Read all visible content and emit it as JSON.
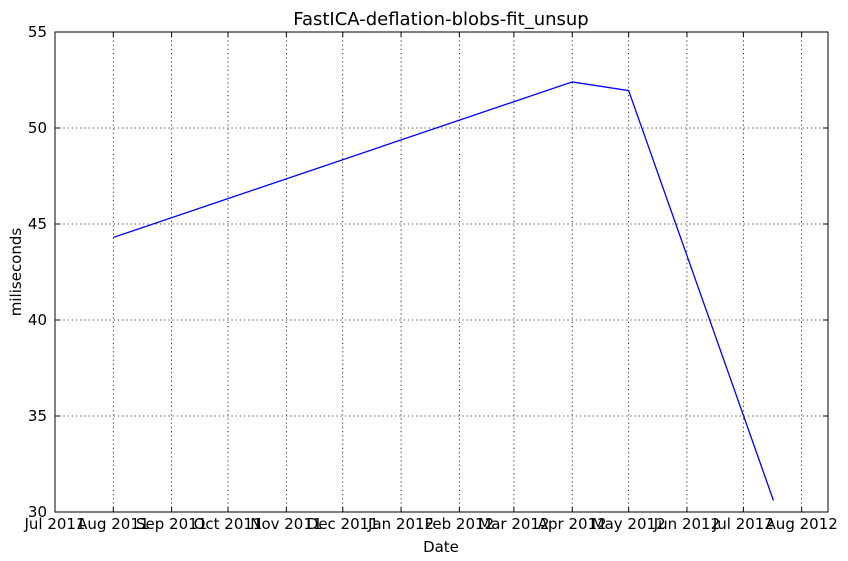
{
  "chart_data": {
    "type": "line",
    "title": "FastICA-deflation-blobs-fit_unsup",
    "xlabel": "Date",
    "ylabel": "miliseconds",
    "x_ticks": [
      "Jul 2011",
      "Aug 2011",
      "Sep 2011",
      "Oct 2011",
      "Nov 2011",
      "Dec 2011",
      "Jan 2012",
      "Feb 2012",
      "Mar 2012",
      "Apr 2012",
      "May 2012",
      "Jun 2012",
      "Jul 2012",
      "Aug 2012"
    ],
    "y_ticks": [
      "30",
      "35",
      "40",
      "45",
      "50",
      "55"
    ],
    "ylim": [
      30,
      55
    ],
    "xlim": [
      "2011-07-01",
      "2012-08-15"
    ],
    "grid": true,
    "series": [
      {
        "color": "#0000ff",
        "points": [
          {
            "x": "2011-08-01",
            "y": 44.3
          },
          {
            "x": "2012-04-01",
            "y": 52.4
          },
          {
            "x": "2012-05-01",
            "y": 51.95
          },
          {
            "x": "2012-07-17",
            "y": 30.6
          }
        ]
      }
    ]
  }
}
